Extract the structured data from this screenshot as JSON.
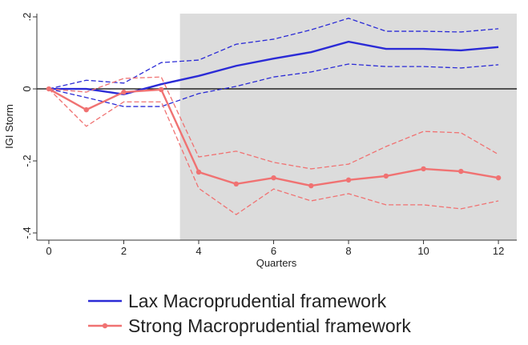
{
  "chart_data": {
    "type": "line",
    "x_label": "Quarters",
    "y_label": "IGI Storm",
    "x": [
      0,
      1,
      2,
      3,
      4,
      5,
      6,
      7,
      8,
      9,
      10,
      11,
      12
    ],
    "series": [
      {
        "name": "Lax Macroprudential framework",
        "color": "#2b2bd6",
        "marker": false,
        "values": [
          0,
          0,
          -0.015,
          0.013,
          0.036,
          0.064,
          0.084,
          0.102,
          0.131,
          0.111,
          0.111,
          0.107,
          0.116
        ],
        "upper": [
          0,
          0.024,
          0.016,
          0.073,
          0.08,
          0.124,
          0.138,
          0.164,
          0.196,
          0.16,
          0.16,
          0.158,
          0.167
        ],
        "lower": [
          0,
          -0.024,
          -0.049,
          -0.049,
          -0.013,
          0.007,
          0.033,
          0.047,
          0.069,
          0.062,
          0.062,
          0.058,
          0.067
        ]
      },
      {
        "name": "Strong Macroprudential framework",
        "color": "#f07272",
        "marker": true,
        "values": [
          0,
          -0.058,
          -0.009,
          -0.002,
          -0.231,
          -0.264,
          -0.247,
          -0.269,
          -0.253,
          -0.242,
          -0.222,
          -0.229,
          -0.247
        ],
        "upper": [
          0,
          -0.009,
          0.029,
          0.033,
          -0.189,
          -0.173,
          -0.204,
          -0.222,
          -0.209,
          -0.16,
          -0.118,
          -0.122,
          -0.182
        ],
        "lower": [
          0,
          -0.104,
          -0.036,
          -0.036,
          -0.276,
          -0.349,
          -0.278,
          -0.311,
          -0.291,
          -0.322,
          -0.322,
          -0.333,
          -0.311
        ]
      }
    ],
    "xlim": [
      -0.32,
      12.49
    ],
    "xticks": [
      0,
      2,
      4,
      6,
      8,
      10,
      12
    ],
    "ylim": [
      -0.42,
      0.209
    ],
    "yticks": [
      {
        "value": 0.2,
        "label": ".2"
      },
      0,
      {
        "value": -0.2,
        "label": "-.2"
      },
      {
        "value": -0.4,
        "label": "-.4"
      }
    ],
    "shade_start": 3.5,
    "shade_color": "#dcdcdc",
    "hline": 0,
    "grid": false
  }
}
